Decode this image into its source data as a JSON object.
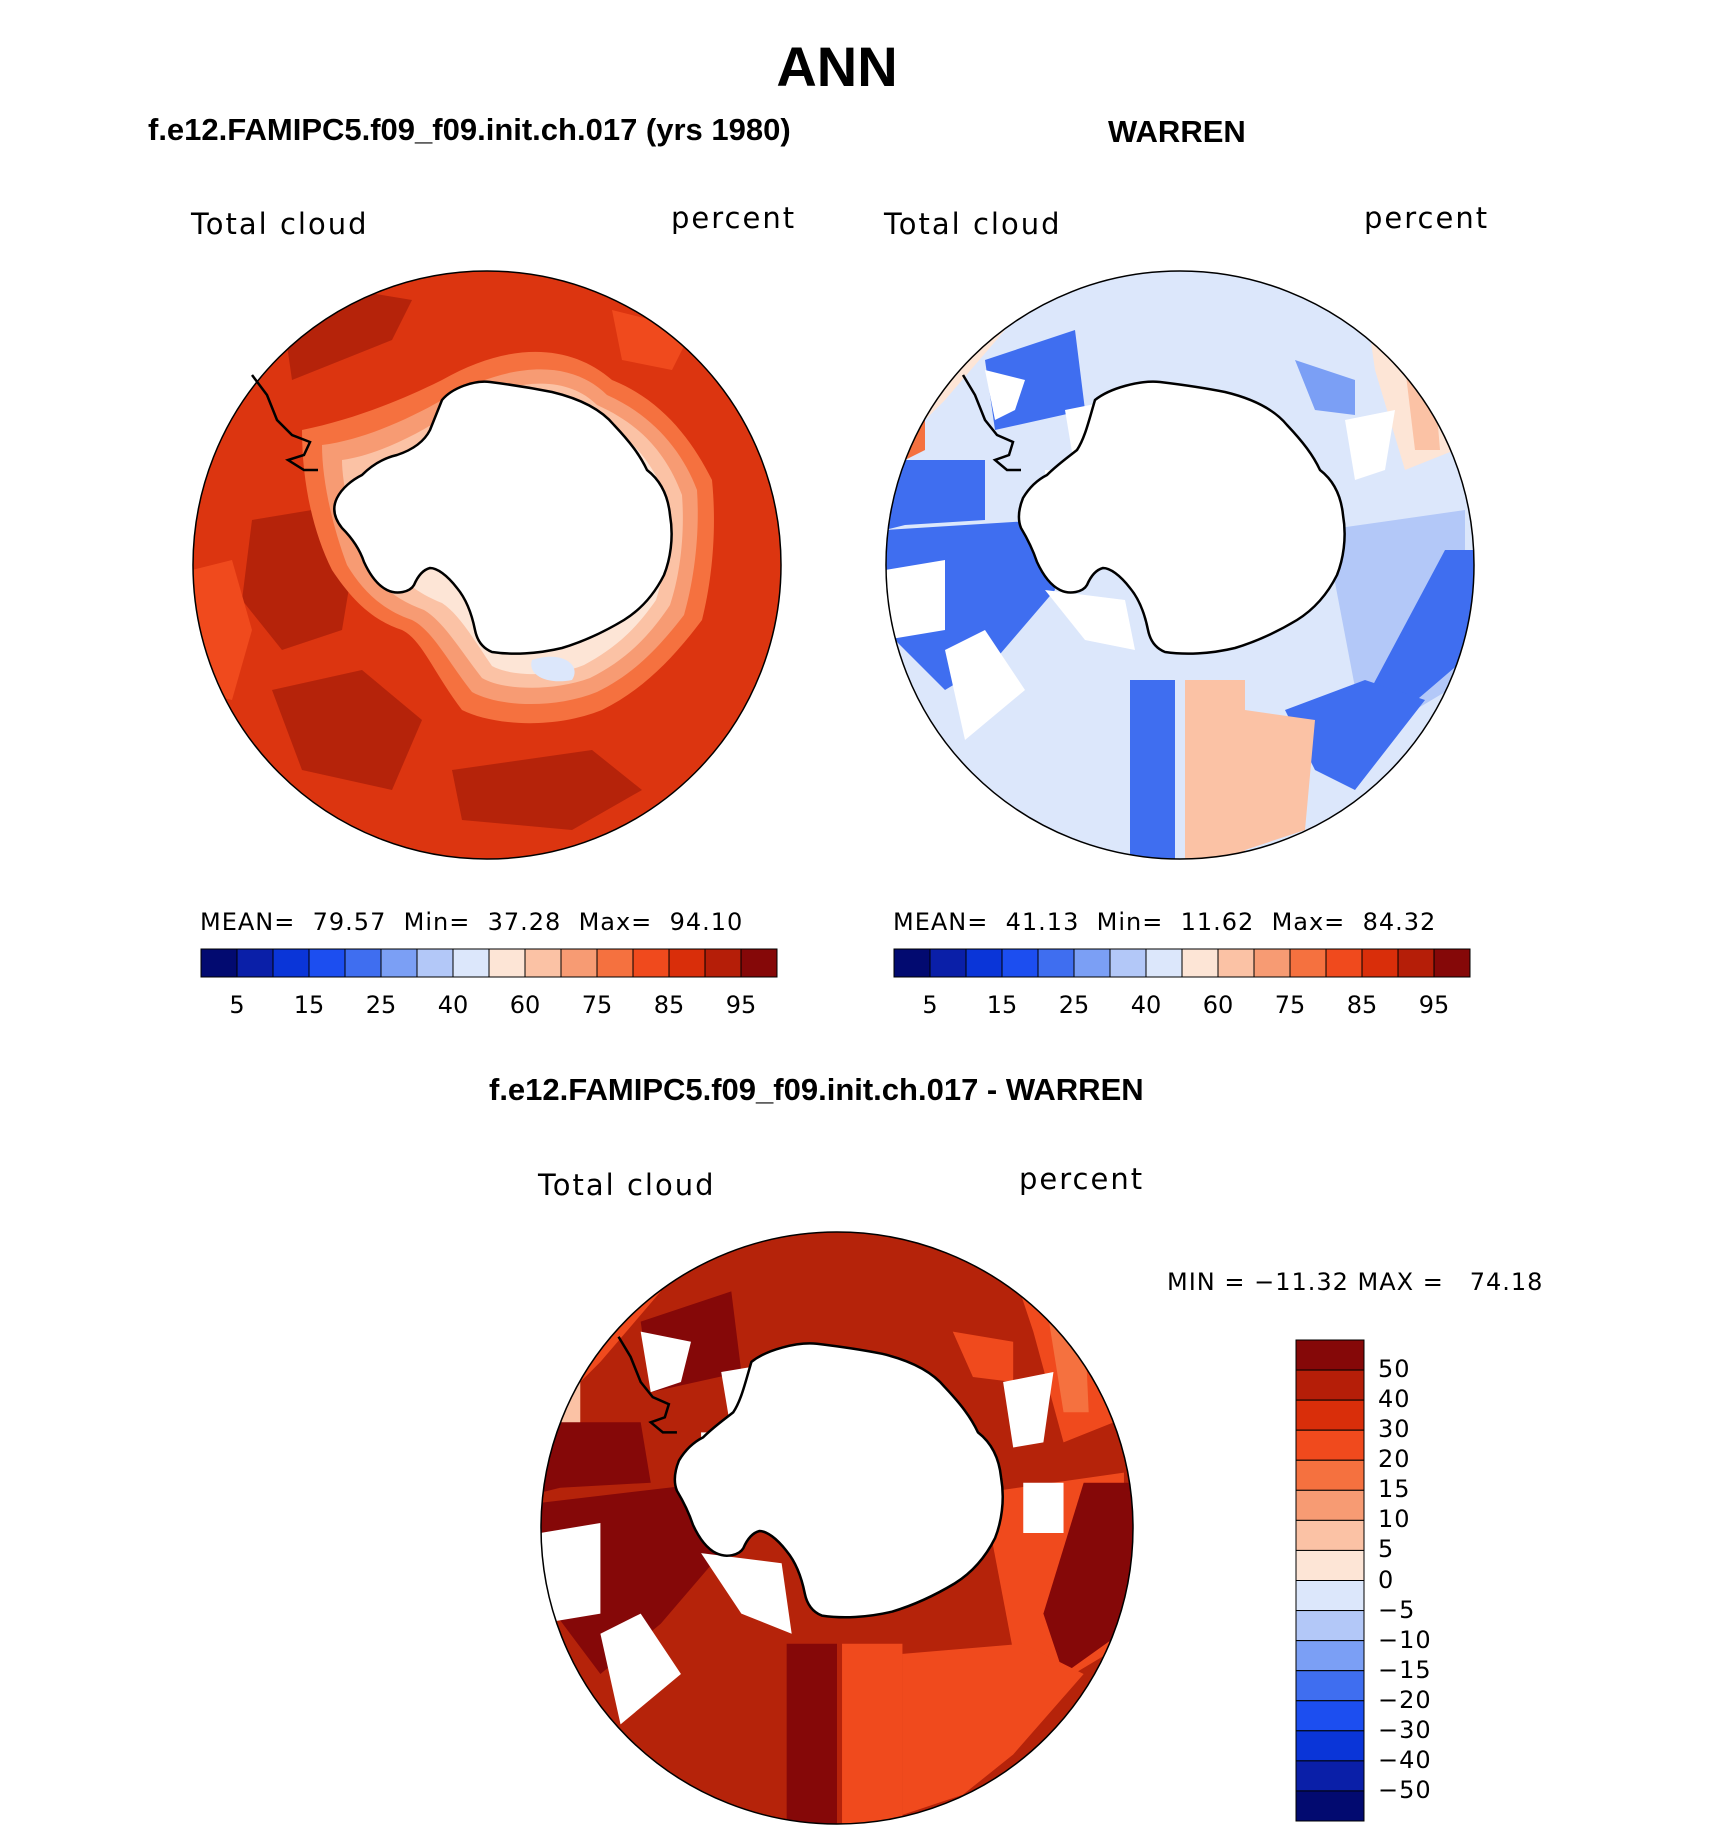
{
  "title": "ANN",
  "panels": [
    {
      "id": "model",
      "title": "f.e12.FAMIPC5.f09_f09.init.ch.017 (yrs 1980)",
      "left_label": "Total cloud",
      "right_label": "percent",
      "stats": {
        "mean_label": "MEAN=",
        "mean": "79.57",
        "min_label": "Min=",
        "min": "37.28",
        "max_label": "Max=",
        "max": "94.10"
      }
    },
    {
      "id": "obs",
      "title": "WARREN",
      "left_label": "Total cloud",
      "right_label": "percent",
      "stats": {
        "mean_label": "MEAN=",
        "mean": "41.13",
        "min_label": "Min=",
        "min": "11.62",
        "max_label": "Max=",
        "max": "84.32"
      }
    },
    {
      "id": "diff",
      "title": "f.e12.FAMIPC5.f09_f09.init.ch.017 - WARREN",
      "left_label": "Total cloud",
      "right_label": "percent",
      "stats_text": "MIN = −11.32 MAX =   74.18"
    }
  ],
  "abs_colorbar": {
    "colors": [
      "#020a70",
      "#0a1fa8",
      "#0a35d8",
      "#1c4ef0",
      "#3f6ef0",
      "#7b9ff5",
      "#b3c8f8",
      "#dce7fb",
      "#fde5d6",
      "#fbc2a5",
      "#f79b73",
      "#f5713f",
      "#f04a1d",
      "#d92e0a",
      "#b51e08",
      "#850808"
    ],
    "tick_labels": [
      "5",
      "15",
      "25",
      "40",
      "60",
      "75",
      "85",
      "95"
    ]
  },
  "diff_colorbar": {
    "colors": [
      "#850808",
      "#b51e08",
      "#d92e0a",
      "#f04a1d",
      "#f5713f",
      "#f79b73",
      "#fbc2a5",
      "#fde5d6",
      "#dce7fb",
      "#b3c8f8",
      "#7b9ff5",
      "#3f6ef0",
      "#1c4ef0",
      "#0a35d8",
      "#0a1fa8",
      "#020a70"
    ],
    "tick_labels": [
      "50",
      "40",
      "30",
      "20",
      "15",
      "10",
      "5",
      "0",
      "−5",
      "−10",
      "−15",
      "−20",
      "−30",
      "−40",
      "−50"
    ]
  }
}
